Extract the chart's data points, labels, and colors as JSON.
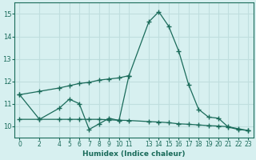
{
  "xlabel": "Humidex (Indice chaleur)",
  "background_color": "#d7f0f0",
  "grid_color": "#c0dede",
  "line_color": "#1a6b5a",
  "xlim": [
    -0.5,
    23.5
  ],
  "ylim": [
    9.5,
    15.5
  ],
  "xticks": [
    0,
    2,
    4,
    5,
    6,
    7,
    8,
    9,
    10,
    11,
    13,
    14,
    15,
    16,
    17,
    18,
    19,
    20,
    21,
    22,
    23
  ],
  "yticks": [
    10,
    11,
    12,
    13,
    14,
    15
  ],
  "series1_x": [
    0,
    2,
    4,
    5,
    6,
    7,
    8,
    9,
    10,
    11,
    13,
    14,
    15,
    16,
    17,
    18,
    19,
    20,
    21,
    22,
    23
  ],
  "series1_y": [
    11.4,
    10.3,
    10.8,
    11.2,
    11.0,
    9.85,
    10.1,
    10.35,
    10.25,
    12.25,
    14.65,
    15.1,
    14.45,
    13.35,
    11.85,
    10.75,
    10.4,
    10.35,
    9.95,
    9.85,
    9.8
  ],
  "series2_x": [
    0,
    2,
    4,
    5,
    6,
    7,
    8,
    9,
    10,
    11
  ],
  "series2_y": [
    11.4,
    11.55,
    11.7,
    11.8,
    11.9,
    11.95,
    12.05,
    12.1,
    12.15,
    12.25
  ],
  "series3_x": [
    0,
    2,
    4,
    5,
    6,
    7,
    8,
    9,
    10,
    11,
    13,
    14,
    15,
    16,
    17,
    18,
    19,
    20,
    21,
    22,
    23
  ],
  "series3_y": [
    10.3,
    10.3,
    10.3,
    10.3,
    10.3,
    10.3,
    10.3,
    10.28,
    10.26,
    10.25,
    10.2,
    10.18,
    10.15,
    10.1,
    10.08,
    10.05,
    10.02,
    10.0,
    9.97,
    9.88,
    9.8
  ]
}
